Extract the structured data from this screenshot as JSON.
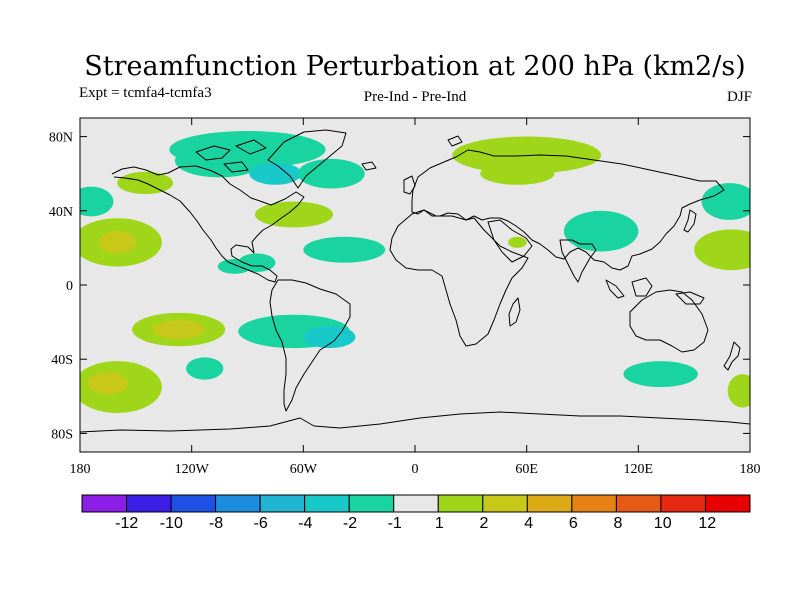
{
  "header": {
    "title": "Streamfunction Perturbation at 200 hPa (km2/s)",
    "left_label": "Expt = tcmfa4-tcmfa3",
    "center_label": "Pre-Ind - Pre-Ind",
    "right_label": "DJF"
  },
  "map": {
    "background_color": "#e8e8e8",
    "lat_ticks": [
      {
        "value": 80,
        "label": "80N"
      },
      {
        "value": 40,
        "label": "40N"
      },
      {
        "value": 0,
        "label": "0"
      },
      {
        "value": -40,
        "label": "40S"
      },
      {
        "value": -80,
        "label": "80S"
      }
    ],
    "lon_ticks": [
      {
        "value": -180,
        "label": "180"
      },
      {
        "value": -120,
        "label": "120W"
      },
      {
        "value": -60,
        "label": "60W"
      },
      {
        "value": 0,
        "label": "0"
      },
      {
        "value": 60,
        "label": "60E"
      },
      {
        "value": 120,
        "label": "120E"
      },
      {
        "value": 180,
        "label": "180"
      }
    ],
    "anomalies": [
      {
        "lon": -90,
        "lat": 73,
        "rlon": 42,
        "rlat": 10,
        "color": "#19d4a0"
      },
      {
        "lon": -105,
        "lat": 67,
        "rlon": 24,
        "rlat": 9,
        "color": "#19d4a0"
      },
      {
        "lon": -75,
        "lat": 60,
        "rlon": 14,
        "rlat": 6,
        "color": "#19c8c8"
      },
      {
        "lon": -45,
        "lat": 60,
        "rlon": 18,
        "rlat": 8,
        "color": "#19d4a0"
      },
      {
        "lon": -145,
        "lat": 55,
        "rlon": 15,
        "rlat": 6,
        "color": "#a0d619"
      },
      {
        "lon": -174,
        "lat": 45,
        "rlon": 12,
        "rlat": 8,
        "color": "#19d4a0"
      },
      {
        "lon": -160,
        "lat": 23,
        "rlon": 24,
        "rlat": 13,
        "color": "#a0d619"
      },
      {
        "lon": -160,
        "lat": 23,
        "rlon": 10,
        "rlat": 6,
        "color": "#c8c819"
      },
      {
        "lon": -65,
        "lat": 38,
        "rlon": 21,
        "rlat": 7,
        "color": "#a0d619"
      },
      {
        "lon": -38,
        "lat": 19,
        "rlon": 22,
        "rlat": 7,
        "color": "#19d4a0"
      },
      {
        "lon": -85,
        "lat": 12,
        "rlon": 10,
        "rlat": 5,
        "color": "#19d4a0"
      },
      {
        "lon": -97,
        "lat": 10,
        "rlon": 9,
        "rlat": 4,
        "color": "#19d4a0"
      },
      {
        "lon": 60,
        "lat": 70,
        "rlon": 40,
        "rlat": 10,
        "color": "#a0d619"
      },
      {
        "lon": 55,
        "lat": 60,
        "rlon": 20,
        "rlat": 6,
        "color": "#a0d619"
      },
      {
        "lon": 100,
        "lat": 29,
        "rlon": 20,
        "rlat": 11,
        "color": "#19d4a0"
      },
      {
        "lon": 55,
        "lat": 23,
        "rlon": 5,
        "rlat": 3,
        "color": "#a0d619"
      },
      {
        "lon": 169,
        "lat": 45,
        "rlon": 15,
        "rlat": 10,
        "color": "#19d4a0"
      },
      {
        "lon": 170,
        "lat": 19,
        "rlon": 20,
        "rlat": 11,
        "color": "#a0d619"
      },
      {
        "lon": -127,
        "lat": -24,
        "rlon": 25,
        "rlat": 9,
        "color": "#a0d619"
      },
      {
        "lon": -127,
        "lat": -24,
        "rlon": 14,
        "rlat": 5,
        "color": "#c8c819"
      },
      {
        "lon": -113,
        "lat": -45,
        "rlon": 10,
        "rlat": 6,
        "color": "#19d4a0"
      },
      {
        "lon": -65,
        "lat": -25,
        "rlon": 30,
        "rlat": 9,
        "color": "#19d4a0"
      },
      {
        "lon": -46,
        "lat": -28,
        "rlon": 14,
        "rlat": 6,
        "color": "#19c8c8"
      },
      {
        "lon": -160,
        "lat": -55,
        "rlon": 24,
        "rlat": 14,
        "color": "#a0d619"
      },
      {
        "lon": -165,
        "lat": -53,
        "rlon": 11,
        "rlat": 6,
        "color": "#c8c819"
      },
      {
        "lon": 132,
        "lat": -48,
        "rlon": 20,
        "rlat": 7,
        "color": "#19d4a0"
      },
      {
        "lon": 176,
        "lat": -57,
        "rlon": 8,
        "rlat": 9,
        "color": "#a0d619"
      }
    ]
  },
  "colorbar": {
    "colors": [
      "#8c1ee6",
      "#3c1ee6",
      "#1e50e6",
      "#1e8cdc",
      "#1eb4d2",
      "#19c8c8",
      "#19d4a0",
      "#e8e8e8",
      "#a0d619",
      "#c8c819",
      "#dcaa14",
      "#e68214",
      "#e65a14",
      "#e62814",
      "#e60000"
    ],
    "labels": [
      "-12",
      "-10",
      "-8",
      "-6",
      "-4",
      "-2",
      "-1",
      "1",
      "2",
      "4",
      "6",
      "8",
      "10",
      "12"
    ]
  }
}
